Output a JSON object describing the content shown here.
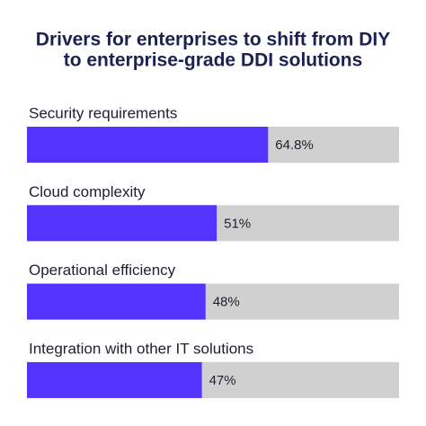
{
  "chart_data": {
    "type": "bar",
    "orientation": "horizontal",
    "title": [
      "Drivers for enterprises to shift from DIY",
      "to enterprise-grade DDI solutions"
    ],
    "categories": [
      "Security requirements",
      "Cloud complexity",
      "Operational efficiency",
      "Integration with other IT solutions"
    ],
    "values": [
      64.8,
      51,
      48,
      47
    ],
    "value_labels": [
      "64.8%",
      "51%",
      "48%",
      "47%"
    ],
    "color": "#5533ff",
    "track_color": "#d0d0d0",
    "xlim": [
      0,
      100
    ]
  }
}
